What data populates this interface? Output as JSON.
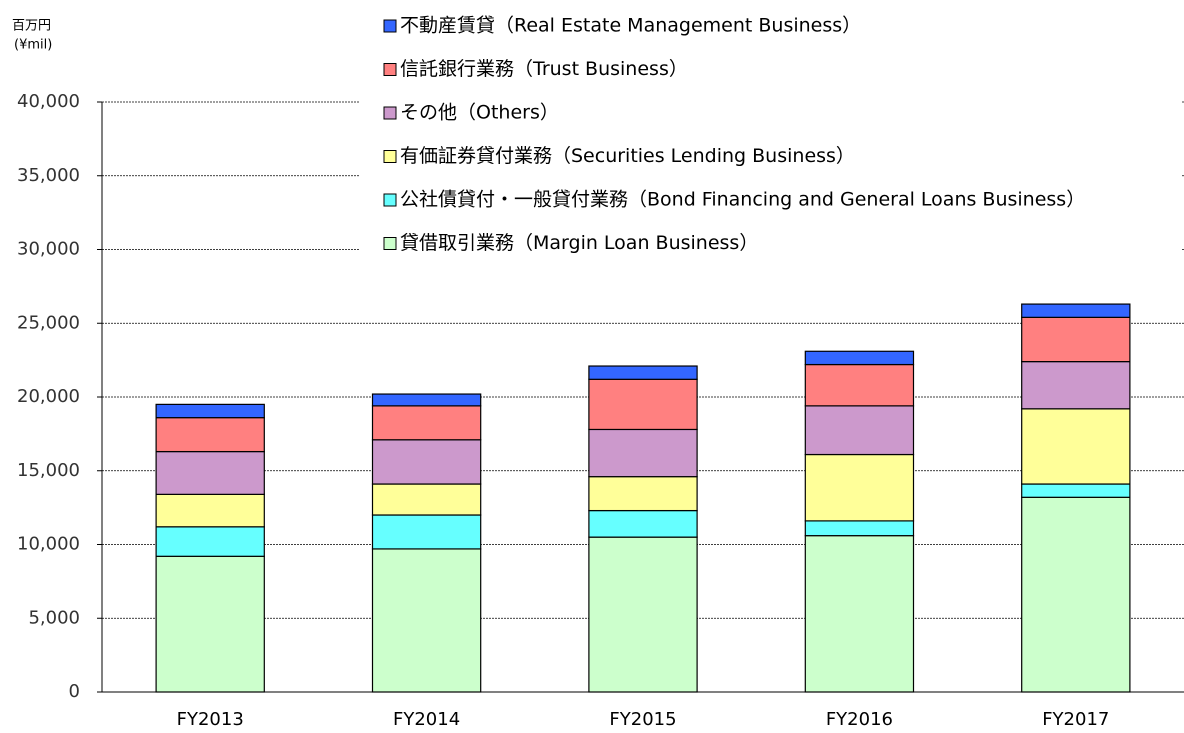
{
  "chart_data": {
    "type": "stacked_bar",
    "y_label": "百万円",
    "y_unit": "(¥mil)",
    "categories": [
      "FY2013",
      "FY2014",
      "FY2015",
      "FY2016",
      "FY2017"
    ],
    "series": [
      {
        "name": "貸借取引業務（Margin Loan Business）",
        "color": "#ccffcc",
        "values": [
          9200,
          9700,
          10500,
          10600,
          13200
        ]
      },
      {
        "name": "公社債貸付・一般貸付業務（Bond Financing and General Loans Business）",
        "color": "#66ffff",
        "values": [
          2000,
          2300,
          1800,
          1000,
          900
        ]
      },
      {
        "name": "有価証券貸付業務（Securities Lending Business）",
        "color": "#ffff99",
        "values": [
          2200,
          2100,
          2300,
          4500,
          5100
        ]
      },
      {
        "name": "その他（Others）",
        "color": "#cc99cc",
        "values": [
          2900,
          3000,
          3200,
          3300,
          3200
        ]
      },
      {
        "name": "信託銀行業務（Trust Business）",
        "color": "#ff8080",
        "values": [
          2300,
          2300,
          3400,
          2800,
          3000
        ]
      },
      {
        "name": "不動産賃貸（Real Estate Management Business）",
        "color": "#3366ff",
        "values": [
          900,
          800,
          900,
          900,
          900
        ]
      }
    ],
    "ylim": [
      0,
      40000
    ],
    "yticks": [
      0,
      {
        "value": 5000,
        "label": "5,000"
      },
      {
        "value": 10000,
        "label": "10,000"
      },
      {
        "value": 15000,
        "label": "15,000"
      },
      {
        "value": 20000,
        "label": "20,000"
      },
      {
        "value": 25000,
        "label": "25,000"
      },
      {
        "value": 30000,
        "label": "30,000"
      },
      {
        "value": 35000,
        "label": "35,000"
      },
      {
        "value": 40000,
        "label": "40,000"
      }
    ],
    "grid": true
  }
}
